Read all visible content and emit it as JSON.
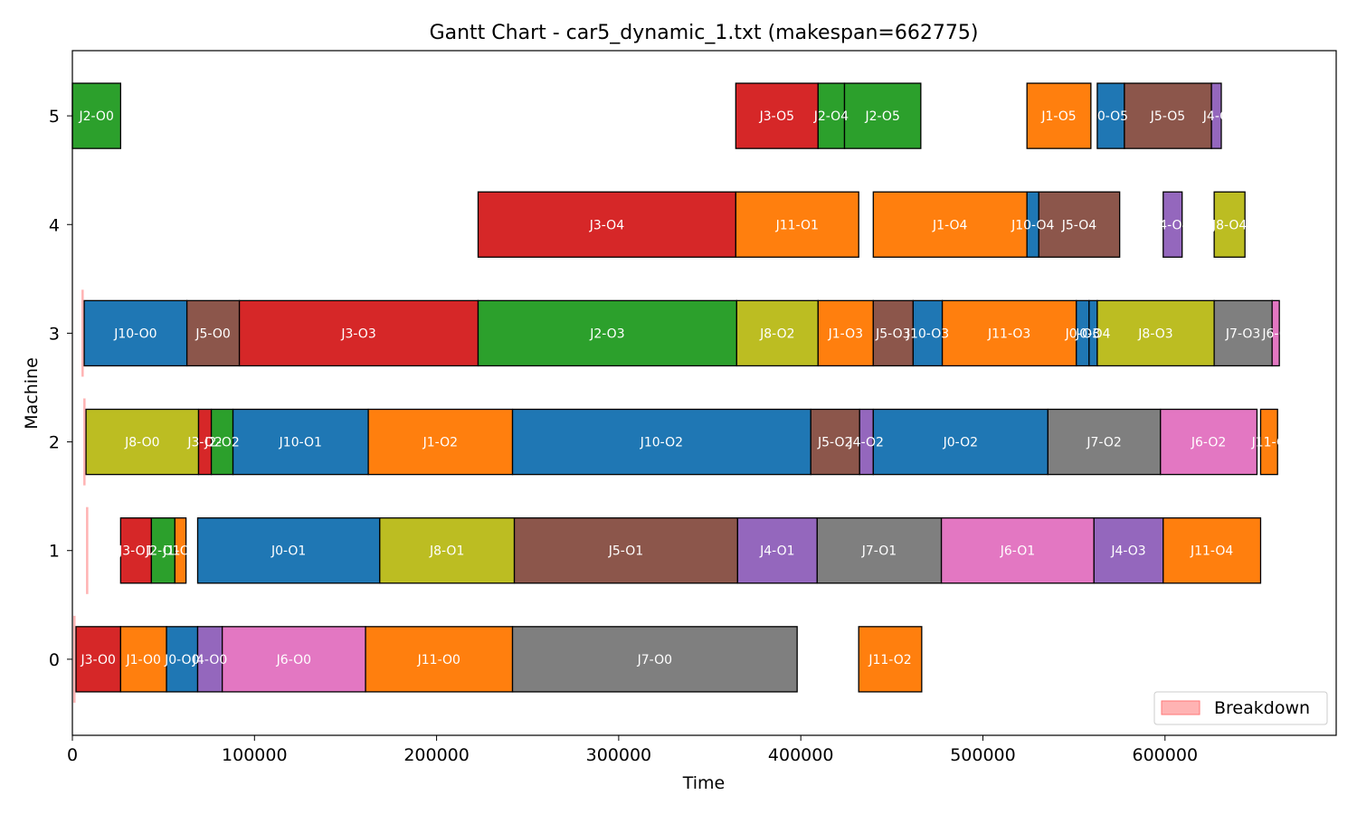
{
  "chart_data": {
    "type": "gantt",
    "title": "Gantt Chart - car5_dynamic_1.txt (makespan=662775)",
    "xlabel": "Time",
    "ylabel": "Machine",
    "xlim": [
      0,
      694000
    ],
    "ylim": [
      -0.7,
      5.6
    ],
    "x_ticks": [
      0,
      100000,
      200000,
      300000,
      400000,
      500000,
      600000
    ],
    "x_tick_labels": [
      "0",
      "100000",
      "200000",
      "300000",
      "400000",
      "500000",
      "600000"
    ],
    "y_ticks": [
      0,
      1,
      2,
      3,
      4,
      5
    ],
    "y_tick_labels": [
      "0",
      "1",
      "2",
      "3",
      "4",
      "5"
    ],
    "grid": false,
    "legend": {
      "position": "bottom-right",
      "entries": [
        {
          "label": "Breakdown",
          "color": "#ff9999"
        }
      ]
    },
    "job_colors": {
      "J0": "#1f77b4",
      "J1": "#ff7f0e",
      "J2": "#2ca02c",
      "J3": "#d62728",
      "J4": "#9467bd",
      "J5": "#8c564b",
      "J6": "#e377c2",
      "J7": "#7f7f7f",
      "J8": "#bcbd22",
      "J10": "#1f77b4",
      "J11": "#ff7f0e"
    },
    "breakdowns": [
      {
        "machine": 0,
        "start": 500,
        "end": 1500
      },
      {
        "machine": 1,
        "start": 7500,
        "end": 8500
      },
      {
        "machine": 2,
        "start": 6000,
        "end": 7000
      },
      {
        "machine": 3,
        "start": 5000,
        "end": 6000
      }
    ],
    "operations": [
      {
        "machine": 0,
        "job": "J3",
        "label": "J3-O0",
        "start": 2000,
        "end": 26500
      },
      {
        "machine": 0,
        "job": "J1",
        "label": "J1-O0",
        "start": 26500,
        "end": 51700
      },
      {
        "machine": 0,
        "job": "J0",
        "label": "J0-O0",
        "start": 51700,
        "end": 68800
      },
      {
        "machine": 0,
        "job": "J4",
        "label": "J4-O0",
        "start": 68800,
        "end": 82300
      },
      {
        "machine": 0,
        "job": "J6",
        "label": "J6-O0",
        "start": 82300,
        "end": 161000
      },
      {
        "machine": 0,
        "job": "J11",
        "label": "J11-O0",
        "start": 161000,
        "end": 241700
      },
      {
        "machine": 0,
        "job": "J7",
        "label": "J7-O0",
        "start": 241700,
        "end": 398000
      },
      {
        "machine": 0,
        "job": "J11",
        "label": "J11-O2",
        "start": 431800,
        "end": 466400
      },
      {
        "machine": 1,
        "job": "J3",
        "label": "J3-O1",
        "start": 26500,
        "end": 43400
      },
      {
        "machine": 1,
        "job": "J2",
        "label": "J2-O1",
        "start": 43400,
        "end": 56300
      },
      {
        "machine": 1,
        "job": "J1",
        "label": "J1-O1",
        "start": 56300,
        "end": 62400
      },
      {
        "machine": 1,
        "job": "J0",
        "label": "J0-O1",
        "start": 68800,
        "end": 168800
      },
      {
        "machine": 1,
        "job": "J8",
        "label": "J8-O1",
        "start": 168800,
        "end": 242700
      },
      {
        "machine": 1,
        "job": "J5",
        "label": "J5-O1",
        "start": 242700,
        "end": 365300
      },
      {
        "machine": 1,
        "job": "J4",
        "label": "J4-O1",
        "start": 365300,
        "end": 409000
      },
      {
        "machine": 1,
        "job": "J7",
        "label": "J7-O1",
        "start": 409000,
        "end": 477200
      },
      {
        "machine": 1,
        "job": "J6",
        "label": "J6-O1",
        "start": 477200,
        "end": 561000
      },
      {
        "machine": 1,
        "job": "J4",
        "label": "J4-O3",
        "start": 561000,
        "end": 599000
      },
      {
        "machine": 1,
        "job": "J11",
        "label": "J11-O4",
        "start": 599000,
        "end": 652500
      },
      {
        "machine": 2,
        "job": "J8",
        "label": "J8-O0",
        "start": 7500,
        "end": 69300
      },
      {
        "machine": 2,
        "job": "J3",
        "label": "J3-O2",
        "start": 69300,
        "end": 76300
      },
      {
        "machine": 2,
        "job": "J2",
        "label": "J2-O2",
        "start": 76300,
        "end": 88200
      },
      {
        "machine": 2,
        "job": "J10",
        "label": "J10-O1",
        "start": 88200,
        "end": 162500
      },
      {
        "machine": 2,
        "job": "J1",
        "label": "J1-O2",
        "start": 162500,
        "end": 241700
      },
      {
        "machine": 2,
        "job": "J10",
        "label": "J10-O2",
        "start": 241700,
        "end": 405500
      },
      {
        "machine": 2,
        "job": "J5",
        "label": "J5-O2",
        "start": 405500,
        "end": 432300
      },
      {
        "machine": 2,
        "job": "J4",
        "label": "J4-O2",
        "start": 432300,
        "end": 439800
      },
      {
        "machine": 2,
        "job": "J0",
        "label": "J0-O2",
        "start": 439800,
        "end": 535700
      },
      {
        "machine": 2,
        "job": "J7",
        "label": "J7-O2",
        "start": 535700,
        "end": 597500
      },
      {
        "machine": 2,
        "job": "J6",
        "label": "J6-O2",
        "start": 597500,
        "end": 650500
      },
      {
        "machine": 2,
        "job": "J11",
        "label": "J11-O",
        "start": 652500,
        "end": 661800
      },
      {
        "machine": 3,
        "job": "J10",
        "label": "J10-O0",
        "start": 6500,
        "end": 62900
      },
      {
        "machine": 3,
        "job": "J5",
        "label": "J5-O0",
        "start": 62900,
        "end": 91700
      },
      {
        "machine": 3,
        "job": "J3",
        "label": "J3-O3",
        "start": 91700,
        "end": 222800
      },
      {
        "machine": 3,
        "job": "J2",
        "label": "J2-O3",
        "start": 222800,
        "end": 364800
      },
      {
        "machine": 3,
        "job": "J8",
        "label": "J8-O2",
        "start": 364800,
        "end": 409500
      },
      {
        "machine": 3,
        "job": "J1",
        "label": "J1-O3",
        "start": 409500,
        "end": 439800
      },
      {
        "machine": 3,
        "job": "J5",
        "label": "J5-O3",
        "start": 439800,
        "end": 461700
      },
      {
        "machine": 3,
        "job": "J10",
        "label": "J10-O3",
        "start": 461700,
        "end": 477700
      },
      {
        "machine": 3,
        "job": "J11",
        "label": "J11-O3",
        "start": 477700,
        "end": 551300
      },
      {
        "machine": 3,
        "job": "J0",
        "label": "J0-O3",
        "start": 551300,
        "end": 558300
      },
      {
        "machine": 3,
        "job": "J0",
        "label": "J0-O4",
        "start": 558300,
        "end": 562800
      },
      {
        "machine": 3,
        "job": "J8",
        "label": "J8-O3",
        "start": 562800,
        "end": 627000
      },
      {
        "machine": 3,
        "job": "J7",
        "label": "J7-O3",
        "start": 627000,
        "end": 658800
      },
      {
        "machine": 3,
        "job": "J6",
        "label": "J6-O",
        "start": 658800,
        "end": 662775
      },
      {
        "machine": 4,
        "job": "J3",
        "label": "J3-O4",
        "start": 222800,
        "end": 364300
      },
      {
        "machine": 4,
        "job": "J11",
        "label": "J11-O1",
        "start": 364300,
        "end": 431800
      },
      {
        "machine": 4,
        "job": "J1",
        "label": "J1-O4",
        "start": 439800,
        "end": 524200
      },
      {
        "machine": 4,
        "job": "J10",
        "label": "J10-O4",
        "start": 524200,
        "end": 530700
      },
      {
        "machine": 4,
        "job": "J5",
        "label": "J5-O4",
        "start": 530700,
        "end": 575100
      },
      {
        "machine": 4,
        "job": "J4",
        "label": "J4-O4",
        "start": 599000,
        "end": 609400
      },
      {
        "machine": 4,
        "job": "J8",
        "label": "J8-O4",
        "start": 627000,
        "end": 643900
      },
      {
        "machine": 5,
        "job": "J2",
        "label": "J2-O0",
        "start": 0,
        "end": 26500
      },
      {
        "machine": 5,
        "job": "J3",
        "label": "J3-O5",
        "start": 364300,
        "end": 409500
      },
      {
        "machine": 5,
        "job": "J2",
        "label": "J2-O4",
        "start": 409500,
        "end": 424000
      },
      {
        "machine": 5,
        "job": "J2",
        "label": "J2-O5",
        "start": 424000,
        "end": 465900
      },
      {
        "machine": 5,
        "job": "J1",
        "label": "J1-O5",
        "start": 524200,
        "end": 559300
      },
      {
        "machine": 5,
        "job": "J0",
        "label": "J0-O5",
        "start": 562800,
        "end": 577700
      },
      {
        "machine": 5,
        "job": "J5",
        "label": "J5-O5",
        "start": 577700,
        "end": 625500
      },
      {
        "machine": 5,
        "job": "J4",
        "label": "J4-O",
        "start": 625500,
        "end": 630900
      }
    ]
  }
}
